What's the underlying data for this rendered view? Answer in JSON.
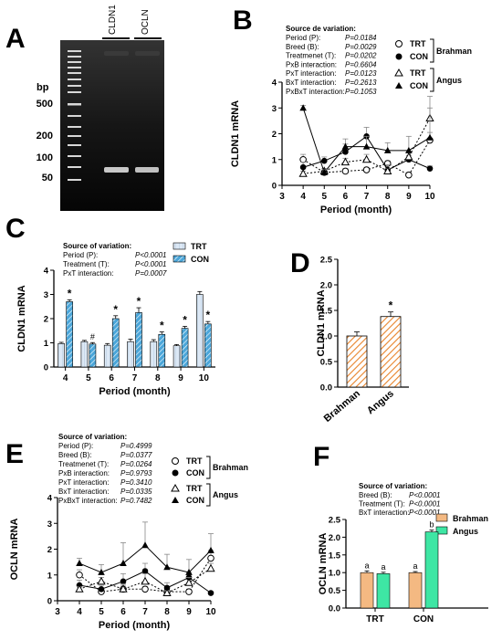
{
  "colors": {
    "trt_fill": "#dce8f5",
    "con_fill": "#4ba6d9",
    "hatch_orange": "#e8832a",
    "brahman": "#f4b982",
    "angus": "#3ee6a4",
    "gel_bg": "#101010"
  },
  "panelA": {
    "label": "A",
    "lanes": [
      "CLDN1",
      "OCLN"
    ],
    "bp_title": "bp",
    "bp_marks": [
      "500",
      "200",
      "100",
      "50"
    ]
  },
  "panelB": {
    "label": "B",
    "stats_title": "Source de variation:",
    "stats": [
      {
        "name": "Period (P):",
        "value": "P=0.0184"
      },
      {
        "name": "Breed (B):",
        "value": "P=0.0029"
      },
      {
        "name": "Treatmenet (T):",
        "value": "P=0.0202"
      },
      {
        "name": "PxB interaction:",
        "value": "P=0.6604"
      },
      {
        "name": "PxT interaction:",
        "value": "P=0.0123"
      },
      {
        "name": "BxT interaction:",
        "value": "P=0.2613"
      },
      {
        "name": "PxBxT interaction:",
        "value": "P=0.1053"
      }
    ],
    "legend": {
      "trt": "TRT",
      "con": "CON",
      "brahman": "Brahman",
      "angus": "Angus"
    }
  },
  "panelC": {
    "label": "C",
    "stats_title": "Source of variation:",
    "stats": [
      {
        "name": "Period (P):",
        "value": "P<0.0001"
      },
      {
        "name": "Treatment (T):",
        "value": "P<0.0001"
      },
      {
        "name": "PxT interaction:",
        "value": "P=0.0007"
      }
    ],
    "legend": {
      "trt": "TRT",
      "con": "CON"
    },
    "marks": [
      "*",
      "#",
      "*",
      "*",
      "*",
      "*",
      "*"
    ]
  },
  "panelD": {
    "label": "D",
    "star": "*"
  },
  "panelE": {
    "label": "E",
    "stats_title": "Source of variation:",
    "stats": [
      {
        "name": "Period (P):",
        "value": "P=0.4999"
      },
      {
        "name": "Breed (B):",
        "value": "P=0.0377"
      },
      {
        "name": "Treatmenet (T):",
        "value": "P=0.0264"
      },
      {
        "name": "PxB interaction:",
        "value": "P=0.9793"
      },
      {
        "name": "PxT interaction:",
        "value": "P=0.3410"
      },
      {
        "name": "BxT interaction:",
        "value": "P=0.0335"
      },
      {
        "name": "PxBxT interaction:",
        "value": "P=0.7482"
      }
    ],
    "legend": {
      "trt": "TRT",
      "con": "CON",
      "brahman": "Brahman",
      "angus": "Angus"
    }
  },
  "panelF": {
    "label": "F",
    "stats_title": "Source of variation:",
    "stats": [
      {
        "name": "Breed (B):",
        "value": "P<0.0001"
      },
      {
        "name": "Treatment (T):",
        "value": "P<0.0001"
      },
      {
        "name": "BxT interaction:",
        "value": "P<0.0001"
      }
    ],
    "legend": {
      "brahman": "Brahman",
      "angus": "Angus"
    },
    "letters": [
      "a",
      "a",
      "a",
      "b"
    ]
  },
  "chart_data": [
    {
      "id": "B",
      "type": "line",
      "xlabel": "Period (month)",
      "ylabel": "CLDN1 mRNA",
      "x": [
        4,
        5,
        6,
        7,
        8,
        9,
        10
      ],
      "xlim": [
        3,
        10
      ],
      "ylim": [
        0,
        4
      ],
      "xticks": [
        "3",
        "4",
        "5",
        "6",
        "7",
        "8",
        "9",
        "10"
      ],
      "yticks": [
        "0",
        "1",
        "2",
        "3",
        "4"
      ],
      "series": [
        {
          "name": "Brahman TRT",
          "marker": "open-circle",
          "line": "dotted",
          "values": [
            1.0,
            0.5,
            0.55,
            0.6,
            0.85,
            0.4,
            1.75
          ],
          "err": [
            0.2,
            0.1,
            0.1,
            0.1,
            0.1,
            0.1,
            0.3
          ]
        },
        {
          "name": "Brahman CON",
          "marker": "filled-circle",
          "line": "solid",
          "values": [
            0.7,
            0.95,
            1.3,
            1.9,
            0.6,
            1.0,
            0.65
          ],
          "err": [
            0.2,
            0.15,
            0.3,
            0.35,
            0.2,
            0.15,
            0.1
          ]
        },
        {
          "name": "Angus TRT",
          "marker": "open-triangle",
          "line": "dotted",
          "values": [
            0.45,
            0.55,
            0.9,
            1.0,
            0.55,
            1.1,
            2.6
          ],
          "err": [
            0.1,
            0.1,
            0.15,
            0.2,
            0.1,
            0.2,
            0.4
          ]
        },
        {
          "name": "Angus CON",
          "marker": "filled-triangle",
          "line": "solid",
          "values": [
            3.0,
            0.5,
            1.5,
            1.5,
            1.35,
            1.35,
            1.85
          ],
          "err": [
            0.1,
            0.1,
            0.3,
            0.4,
            0.3,
            0.55,
            1.6
          ]
        }
      ]
    },
    {
      "id": "C",
      "type": "bar",
      "xlabel": "Period (month)",
      "ylabel": "CLDN1 mRNA",
      "categories": [
        "4",
        "5",
        "6",
        "7",
        "8",
        "9",
        "10"
      ],
      "ylim": [
        0,
        4
      ],
      "yticks": [
        "0",
        "1",
        "2",
        "3",
        "4"
      ],
      "series": [
        {
          "name": "TRT",
          "values": [
            0.97,
            1.05,
            0.9,
            1.05,
            1.05,
            0.88,
            3.0
          ],
          "err": [
            0.05,
            0.05,
            0.07,
            0.1,
            0.08,
            0.05,
            0.12
          ]
        },
        {
          "name": "CON",
          "values": [
            2.7,
            0.95,
            2.0,
            2.25,
            1.35,
            1.6,
            1.78
          ],
          "err": [
            0.08,
            0.06,
            0.12,
            0.2,
            0.1,
            0.08,
            0.1
          ]
        }
      ]
    },
    {
      "id": "D",
      "type": "bar",
      "ylabel": "CLDN1 mRNA",
      "categories": [
        "Brahman",
        "Angus"
      ],
      "ylim": [
        0,
        2.5
      ],
      "yticks": [
        "0.0",
        "0.5",
        "1.0",
        "1.5",
        "2.0",
        "2.5"
      ],
      "values": [
        1.0,
        1.38
      ],
      "err": [
        0.08,
        0.09
      ]
    },
    {
      "id": "E",
      "type": "line",
      "xlabel": "Period (month)",
      "ylabel": "OCLN mRNA",
      "x": [
        4,
        5,
        6,
        7,
        8,
        9,
        10
      ],
      "xlim": [
        3,
        10
      ],
      "ylim": [
        0,
        4
      ],
      "xticks": [
        "3",
        "4",
        "5",
        "6",
        "7",
        "8",
        "9",
        "10"
      ],
      "yticks": [
        "0",
        "1",
        "2",
        "3",
        "4"
      ],
      "series": [
        {
          "name": "Brahman TRT",
          "marker": "open-circle",
          "line": "dotted",
          "values": [
            1.0,
            0.35,
            0.45,
            0.45,
            0.35,
            0.35,
            1.65
          ],
          "err": [
            0.2,
            0.1,
            0.15,
            0.1,
            0.1,
            0.1,
            0.3
          ]
        },
        {
          "name": "Brahman CON",
          "marker": "filled-circle",
          "line": "solid",
          "values": [
            0.6,
            0.45,
            0.75,
            1.15,
            0.5,
            0.9,
            0.3
          ],
          "err": [
            0.2,
            0.15,
            0.3,
            0.3,
            0.2,
            0.2,
            0.05
          ]
        },
        {
          "name": "Angus TRT",
          "marker": "open-triangle",
          "line": "dotted",
          "values": [
            0.45,
            0.75,
            0.45,
            0.75,
            0.3,
            0.7,
            1.25
          ],
          "err": [
            0.1,
            0.15,
            0.2,
            0.3,
            0.1,
            0.2,
            0.2
          ]
        },
        {
          "name": "Angus CON",
          "marker": "filled-triangle",
          "line": "solid",
          "values": [
            1.45,
            1.1,
            1.45,
            2.15,
            1.3,
            1.1,
            1.95
          ],
          "err": [
            0.2,
            0.3,
            0.8,
            0.9,
            0.5,
            0.5,
            0.65
          ]
        }
      ]
    },
    {
      "id": "F",
      "type": "bar",
      "ylabel": "OCLN mRNA",
      "categories": [
        "TRT",
        "CON"
      ],
      "ylim": [
        0,
        2.5
      ],
      "yticks": [
        "0.0",
        "0.5",
        "1.0",
        "1.5",
        "2.0",
        "2.5"
      ],
      "series": [
        {
          "name": "Brahman",
          "values": [
            1.0,
            1.0
          ],
          "err": [
            0.05,
            0.03
          ]
        },
        {
          "name": "Angus",
          "values": [
            0.97,
            2.15
          ],
          "err": [
            0.04,
            0.05
          ]
        }
      ]
    }
  ]
}
